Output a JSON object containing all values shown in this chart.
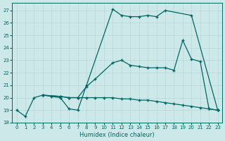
{
  "xlabel": "Humidex (Indice chaleur)",
  "bg_color": "#cde8e8",
  "grid_color": "#b8d8d8",
  "line_color": "#006666",
  "xlim": [
    -0.5,
    23.5
  ],
  "ylim": [
    18,
    27.6
  ],
  "xticks": [
    0,
    1,
    2,
    3,
    4,
    5,
    6,
    7,
    8,
    9,
    10,
    11,
    12,
    13,
    14,
    15,
    16,
    17,
    18,
    19,
    20,
    21,
    22,
    23
  ],
  "yticks": [
    18,
    19,
    20,
    21,
    22,
    23,
    24,
    25,
    26,
    27
  ],
  "line1": {
    "x": [
      0,
      1,
      2,
      3,
      4,
      5,
      6,
      7,
      8,
      11,
      12,
      13,
      14,
      15,
      16,
      17,
      20,
      23
    ],
    "y": [
      19,
      18.5,
      20,
      20.2,
      20.1,
      20,
      19.1,
      19.0,
      21.0,
      27.1,
      26.6,
      26.5,
      26.5,
      26.6,
      26.5,
      27.0,
      26.6,
      19.0
    ]
  },
  "line2": {
    "x": [
      3,
      5,
      6,
      7,
      8,
      9,
      11,
      12,
      13,
      14,
      15,
      16,
      17,
      18,
      19,
      20,
      21,
      22,
      23
    ],
    "y": [
      20.2,
      20.1,
      20.0,
      20.0,
      20.9,
      21.5,
      22.8,
      23.0,
      22.6,
      22.5,
      22.4,
      22.4,
      22.4,
      22.2,
      24.6,
      23.1,
      22.9,
      19.1,
      19.0
    ]
  },
  "line3": {
    "x": [
      3,
      5,
      6,
      7,
      8,
      9,
      10,
      11,
      12,
      13,
      14,
      15,
      16,
      17,
      18,
      19,
      20,
      21,
      22,
      23
    ],
    "y": [
      20.2,
      20.1,
      20.0,
      20.0,
      20.0,
      20.0,
      20.0,
      20.0,
      19.9,
      19.9,
      19.8,
      19.8,
      19.7,
      19.6,
      19.5,
      19.4,
      19.3,
      19.2,
      19.1,
      19.0
    ]
  }
}
